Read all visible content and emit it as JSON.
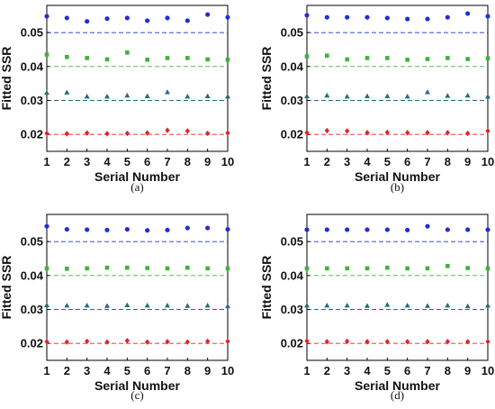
{
  "chart_data": [
    {
      "type": "scatter",
      "panel": "(a)",
      "xlabel": "Serial Number",
      "ylabel": "Fitted SSR",
      "xlim": [
        1,
        10
      ],
      "ylim": [
        0.015,
        0.058
      ],
      "xticks": [
        "1",
        "2",
        "3",
        "4",
        "5",
        "6",
        "7",
        "8",
        "9",
        "10"
      ],
      "yticks": [
        "0.02",
        "0.03",
        "0.04",
        "0.05"
      ],
      "reference_lines": [
        0.02,
        0.03,
        0.04,
        0.05
      ],
      "grid": false,
      "series": [
        {
          "marker": "circle",
          "color": "#1f2fd6",
          "x": [
            1,
            2,
            3,
            4,
            5,
            6,
            7,
            8,
            9,
            10
          ],
          "y": [
            0.0548,
            0.0543,
            0.0533,
            0.0541,
            0.0543,
            0.0535,
            0.0543,
            0.0535,
            0.0553,
            0.0545
          ]
        },
        {
          "marker": "square",
          "color": "#3cb43c",
          "x": [
            1,
            2,
            3,
            4,
            5,
            6,
            7,
            8,
            9,
            10
          ],
          "y": [
            0.0435,
            0.0428,
            0.0425,
            0.0421,
            0.0441,
            0.042,
            0.0425,
            0.0425,
            0.0421,
            0.042
          ]
        },
        {
          "marker": "triangle",
          "color": "#2b6b7a",
          "x": [
            1,
            2,
            3,
            4,
            5,
            6,
            7,
            8,
            9,
            10
          ],
          "y": [
            0.0323,
            0.0324,
            0.0312,
            0.0312,
            0.0315,
            0.0313,
            0.0325,
            0.0312,
            0.0313,
            0.0312
          ]
        },
        {
          "marker": "diamond",
          "color": "#e52121",
          "x": [
            1,
            2,
            3,
            4,
            5,
            6,
            7,
            8,
            9,
            10
          ],
          "y": [
            0.0203,
            0.0202,
            0.0204,
            0.0202,
            0.0203,
            0.0204,
            0.0212,
            0.021,
            0.0203,
            0.0204
          ]
        }
      ]
    },
    {
      "type": "scatter",
      "panel": "(b)",
      "xlabel": "Serial Number",
      "ylabel": "Fitted SSR",
      "xlim": [
        1,
        10
      ],
      "ylim": [
        0.015,
        0.058
      ],
      "xticks": [
        "1",
        "2",
        "3",
        "4",
        "5",
        "6",
        "7",
        "8",
        "9",
        "10"
      ],
      "yticks": [
        "0.02",
        "0.03",
        "0.04",
        "0.05"
      ],
      "reference_lines": [
        0.02,
        0.03,
        0.04,
        0.05
      ],
      "grid": false,
      "series": [
        {
          "marker": "circle",
          "color": "#1f2fd6",
          "x": [
            1,
            2,
            3,
            4,
            5,
            6,
            7,
            8,
            9,
            10
          ],
          "y": [
            0.0551,
            0.0545,
            0.0545,
            0.0545,
            0.0543,
            0.054,
            0.054,
            0.0545,
            0.0556,
            0.0548
          ]
        },
        {
          "marker": "square",
          "color": "#3cb43c",
          "x": [
            1,
            2,
            3,
            4,
            5,
            6,
            7,
            8,
            9,
            10
          ],
          "y": [
            0.043,
            0.0432,
            0.0421,
            0.0425,
            0.0425,
            0.042,
            0.0422,
            0.0425,
            0.0422,
            0.0424
          ]
        },
        {
          "marker": "triangle",
          "color": "#2b6b7a",
          "x": [
            1,
            2,
            3,
            4,
            5,
            6,
            7,
            8,
            9,
            10
          ],
          "y": [
            0.0313,
            0.0315,
            0.0312,
            0.0313,
            0.0313,
            0.0312,
            0.0325,
            0.0314,
            0.0315,
            0.0312
          ]
        },
        {
          "marker": "diamond",
          "color": "#e52121",
          "x": [
            1,
            2,
            3,
            4,
            5,
            6,
            7,
            8,
            9,
            10
          ],
          "y": [
            0.0205,
            0.0211,
            0.021,
            0.0205,
            0.0206,
            0.0205,
            0.0205,
            0.0205,
            0.0203,
            0.021
          ]
        }
      ]
    },
    {
      "type": "scatter",
      "panel": "(c)",
      "xlabel": "Serial Number",
      "ylabel": "Fitted SSR",
      "xlim": [
        1,
        10
      ],
      "ylim": [
        0.015,
        0.058
      ],
      "xticks": [
        "1",
        "2",
        "3",
        "4",
        "5",
        "6",
        "7",
        "8",
        "9",
        "10"
      ],
      "yticks": [
        "0.02",
        "0.03",
        "0.04",
        "0.05"
      ],
      "reference_lines": [
        0.02,
        0.03,
        0.04,
        0.05
      ],
      "grid": false,
      "series": [
        {
          "marker": "circle",
          "color": "#1f2fd6",
          "x": [
            1,
            2,
            3,
            4,
            5,
            6,
            7,
            8,
            9,
            10
          ],
          "y": [
            0.0545,
            0.0536,
            0.0535,
            0.0534,
            0.0536,
            0.0533,
            0.0534,
            0.054,
            0.054,
            0.0536
          ]
        },
        {
          "marker": "square",
          "color": "#3cb43c",
          "x": [
            1,
            2,
            3,
            4,
            5,
            6,
            7,
            8,
            9,
            10
          ],
          "y": [
            0.0421,
            0.042,
            0.0421,
            0.0423,
            0.0423,
            0.0422,
            0.0421,
            0.0423,
            0.0421,
            0.0421
          ]
        },
        {
          "marker": "triangle",
          "color": "#2b6b7a",
          "x": [
            1,
            2,
            3,
            4,
            5,
            6,
            7,
            8,
            9,
            10
          ],
          "y": [
            0.0313,
            0.0312,
            0.0312,
            0.0311,
            0.0313,
            0.0312,
            0.0312,
            0.0311,
            0.0312,
            0.031
          ]
        },
        {
          "marker": "diamond",
          "color": "#e52121",
          "x": [
            1,
            2,
            3,
            4,
            5,
            6,
            7,
            8,
            9,
            10
          ],
          "y": [
            0.0205,
            0.0204,
            0.0206,
            0.0204,
            0.0208,
            0.0204,
            0.0205,
            0.0204,
            0.0206,
            0.0206
          ]
        }
      ]
    },
    {
      "type": "scatter",
      "panel": "(d)",
      "xlabel": "Serial Number",
      "ylabel": "Fitted SSR",
      "xlim": [
        1,
        10
      ],
      "ylim": [
        0.015,
        0.058
      ],
      "xticks": [
        "1",
        "2",
        "3",
        "4",
        "5",
        "6",
        "7",
        "8",
        "9",
        "10"
      ],
      "yticks": [
        "0.02",
        "0.03",
        "0.04",
        "0.05"
      ],
      "reference_lines": [
        0.02,
        0.03,
        0.04,
        0.05
      ],
      "grid": false,
      "series": [
        {
          "marker": "circle",
          "color": "#1f2fd6",
          "x": [
            1,
            2,
            3,
            4,
            5,
            6,
            7,
            8,
            9,
            10
          ],
          "y": [
            0.0535,
            0.0535,
            0.0535,
            0.0535,
            0.0535,
            0.0534,
            0.0545,
            0.0535,
            0.0535,
            0.0535
          ]
        },
        {
          "marker": "square",
          "color": "#3cb43c",
          "x": [
            1,
            2,
            3,
            4,
            5,
            6,
            7,
            8,
            9,
            10
          ],
          "y": [
            0.0421,
            0.0421,
            0.0421,
            0.0421,
            0.0423,
            0.0421,
            0.0421,
            0.0428,
            0.0422,
            0.0421
          ]
        },
        {
          "marker": "triangle",
          "color": "#2b6b7a",
          "x": [
            1,
            2,
            3,
            4,
            5,
            6,
            7,
            8,
            9,
            10
          ],
          "y": [
            0.0312,
            0.0312,
            0.0312,
            0.0311,
            0.0314,
            0.0312,
            0.0311,
            0.0312,
            0.031,
            0.0312
          ]
        },
        {
          "marker": "diamond",
          "color": "#e52121",
          "x": [
            1,
            2,
            3,
            4,
            5,
            6,
            7,
            8,
            9,
            10
          ],
          "y": [
            0.0207,
            0.0205,
            0.0206,
            0.0205,
            0.0205,
            0.0205,
            0.0205,
            0.0205,
            0.0205,
            0.0205
          ]
        }
      ]
    }
  ]
}
